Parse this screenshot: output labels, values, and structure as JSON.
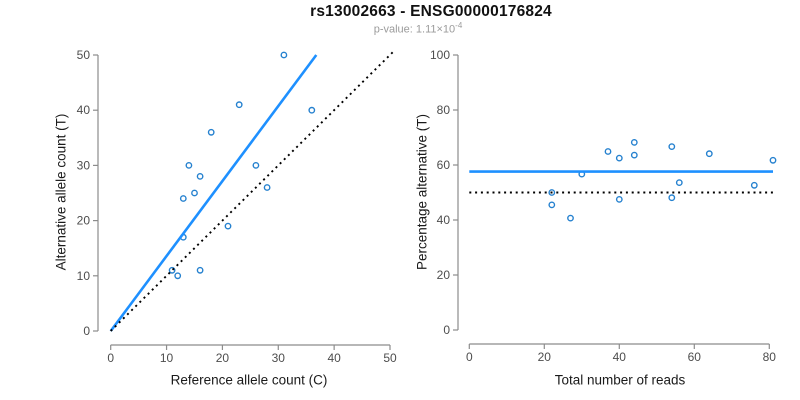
{
  "figure": {
    "title": "rs13002663 - ENSG00000176824",
    "subtitle_prefix": "p-value: ",
    "pvalue_mantissa": "1.11×10",
    "pvalue_exponent": "-4",
    "colors": {
      "solid_line": "#1e90ff",
      "points": "#2581cf",
      "dotted_line": "#000000",
      "axis": "#8c8c8c",
      "tick_labels": "#4d4d4d",
      "subtitle": "#9b9b9b"
    }
  },
  "chart_data": [
    {
      "type": "scatter",
      "panel": "left",
      "xlabel": "Reference allele count (C)",
      "ylabel": "Alternative allele count (T)",
      "xlim": [
        0,
        50
      ],
      "ylim": [
        0,
        50
      ],
      "xticks": [
        0,
        10,
        20,
        30,
        40,
        50
      ],
      "yticks": [
        0,
        10,
        20,
        30,
        40,
        50
      ],
      "marker": "open-circle",
      "grid": false,
      "points": [
        [
          31,
          50
        ],
        [
          23,
          41
        ],
        [
          36,
          40
        ],
        [
          18,
          36
        ],
        [
          14,
          30
        ],
        [
          26,
          30
        ],
        [
          16,
          28
        ],
        [
          28,
          26
        ],
        [
          15,
          25
        ],
        [
          13,
          24
        ],
        [
          21,
          19
        ],
        [
          13,
          17
        ],
        [
          16,
          11
        ],
        [
          11,
          11
        ],
        [
          12,
          10
        ]
      ],
      "lines": [
        {
          "name": "regression-line",
          "style": "solid",
          "color": "#1e90ff",
          "from": [
            0,
            0
          ],
          "to": [
            36.8,
            50
          ]
        },
        {
          "name": "identity-line",
          "style": "dotted",
          "color": "#000000",
          "from": [
            0,
            0
          ],
          "to": [
            50.9,
            50.9
          ]
        }
      ]
    },
    {
      "type": "scatter",
      "panel": "right",
      "xlabel": "Total number of reads",
      "ylabel": "Percentage alternative (T)",
      "xlim": [
        0,
        80
      ],
      "ylim": [
        0,
        100
      ],
      "xticks": [
        0,
        20,
        40,
        60,
        80
      ],
      "yticks": [
        0,
        20,
        40,
        60,
        80,
        100
      ],
      "marker": "open-circle",
      "grid": false,
      "points": [
        [
          81,
          61.7
        ],
        [
          64,
          64.1
        ],
        [
          76,
          52.6
        ],
        [
          54,
          66.7
        ],
        [
          44,
          68.2
        ],
        [
          56,
          53.6
        ],
        [
          44,
          63.6
        ],
        [
          40,
          62.5
        ],
        [
          37,
          64.9
        ],
        [
          54,
          48.1
        ],
        [
          40,
          47.5
        ],
        [
          30,
          56.7
        ],
        [
          27,
          40.7
        ],
        [
          22,
          50.0
        ],
        [
          22,
          45.5
        ]
      ],
      "lines": [
        {
          "name": "mean-percentage-line",
          "style": "solid",
          "color": "#1e90ff",
          "y": 57.6,
          "x_span": [
            0,
            81
          ]
        },
        {
          "name": "fifty-percent-line",
          "style": "dotted",
          "color": "#000000",
          "y": 50,
          "x_span": [
            0,
            81
          ]
        }
      ]
    }
  ]
}
